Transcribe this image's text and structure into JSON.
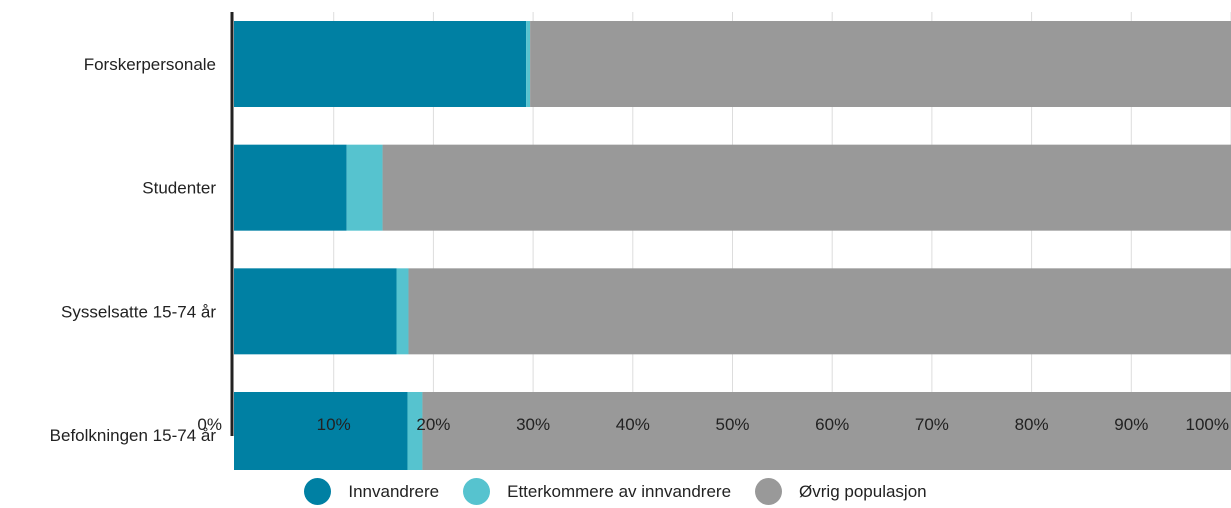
{
  "chart_data": {
    "type": "bar",
    "orientation": "horizontal",
    "stacked": true,
    "categories": [
      "Forskerpersonale",
      "Studenter",
      "Sysselsatte 15-74 år",
      "Befolkningen 15-74 år"
    ],
    "series": [
      {
        "name": "Innvandrere",
        "color": "#0080a3",
        "values": [
          29.3,
          11.3,
          16.3,
          17.4
        ]
      },
      {
        "name": "Etterkommere av innvandrere",
        "color": "#56c3cf",
        "values": [
          0.4,
          3.6,
          1.2,
          1.5
        ]
      },
      {
        "name": "Øvrig populasjon",
        "color": "#999999",
        "values": [
          70.3,
          85.1,
          82.5,
          81.1
        ]
      }
    ],
    "xlim": [
      0,
      100
    ],
    "x_ticks": [
      "0%",
      "10%",
      "20%",
      "30%",
      "40%",
      "50%",
      "60%",
      "70%",
      "80%",
      "90%",
      "100%"
    ],
    "x_tick_values": [
      0,
      10,
      20,
      30,
      40,
      50,
      60,
      70,
      80,
      90,
      100
    ],
    "grid": "vertical",
    "legend_position": "bottom"
  }
}
